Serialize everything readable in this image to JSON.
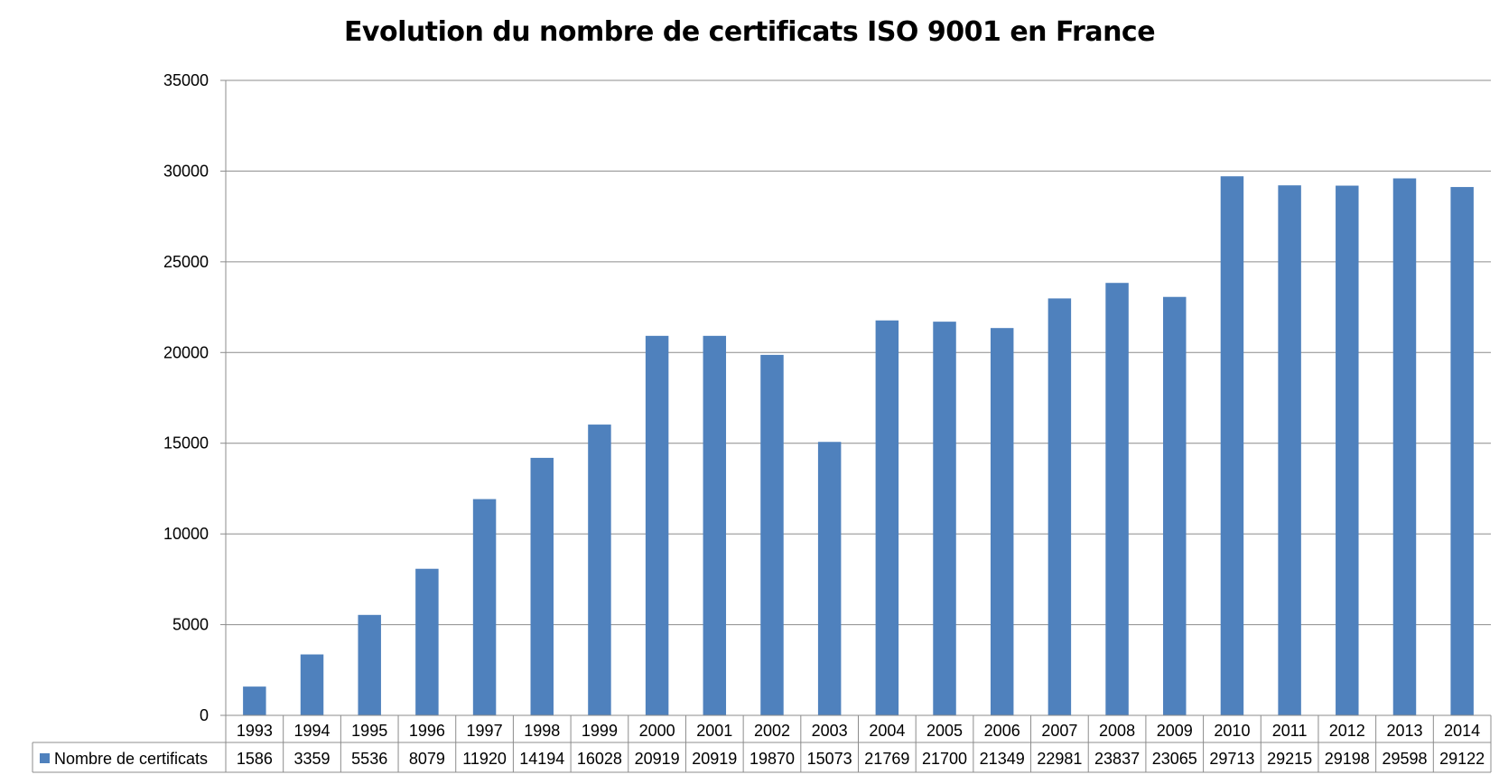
{
  "chart_data": {
    "type": "bar",
    "title": "Evolution du nombre de certificats ISO 9001 en France",
    "xlabel": "",
    "ylabel": "",
    "ylim": [
      0,
      35000
    ],
    "yticks": [
      "0",
      "5000",
      "10000",
      "15000",
      "20000",
      "25000",
      "30000",
      "35000"
    ],
    "grid": true,
    "legend": "data-table",
    "categories": [
      "1993",
      "1994",
      "1995",
      "1996",
      "1997",
      "1998",
      "1999",
      "2000",
      "2001",
      "2002",
      "2003",
      "2004",
      "2005",
      "2006",
      "2007",
      "2008",
      "2009",
      "2010",
      "2011",
      "2012",
      "2013",
      "2014"
    ],
    "series": [
      {
        "name": "Nombre de certificats",
        "color": "#4F81BD",
        "values": [
          1586,
          3359,
          5536,
          8079,
          11920,
          14194,
          16028,
          20919,
          20919,
          19870,
          15073,
          21769,
          21700,
          21349,
          22981,
          23837,
          23065,
          29713,
          29215,
          29198,
          29598,
          29122
        ]
      }
    ]
  }
}
